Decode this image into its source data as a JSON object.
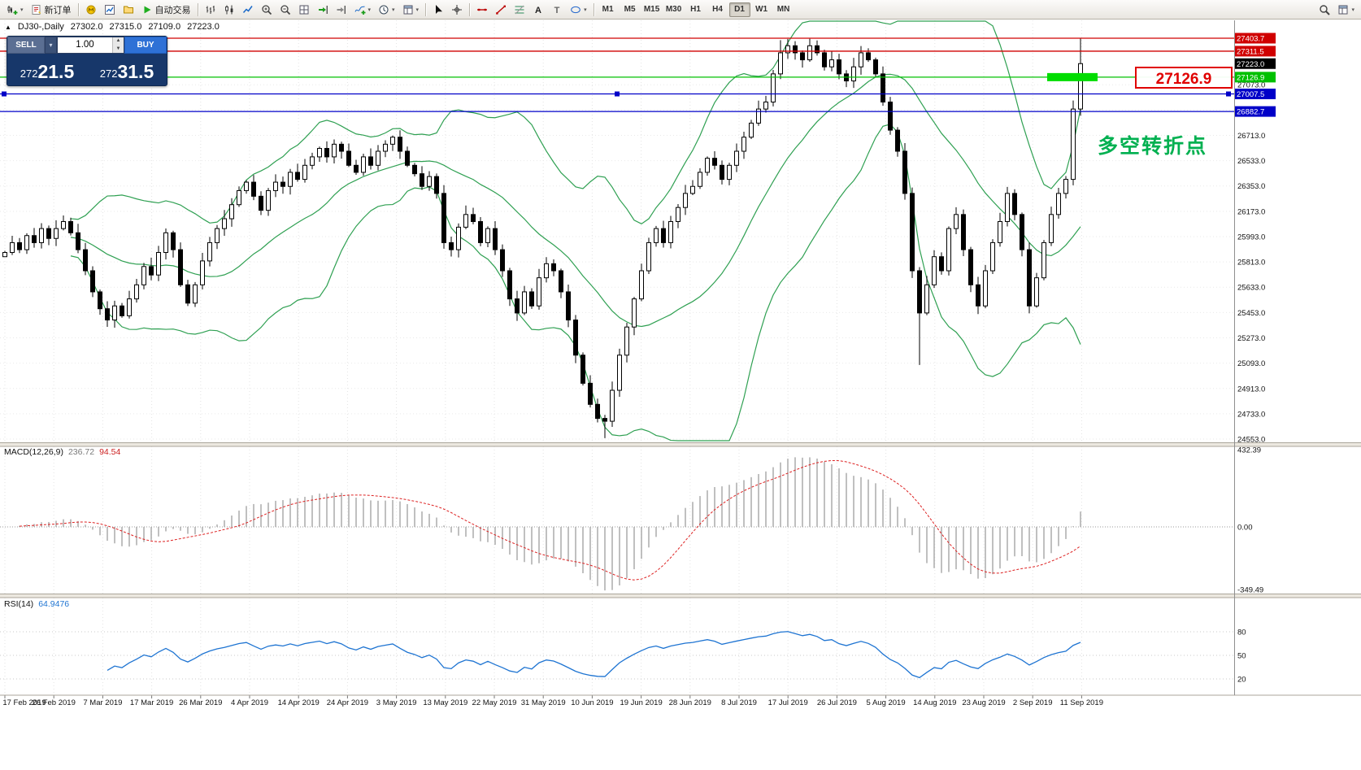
{
  "toolbar": {
    "timeframes": [
      "M1",
      "M5",
      "M15",
      "M30",
      "H1",
      "H4",
      "D1",
      "W1",
      "MN"
    ],
    "active_timeframe": "D1",
    "items": [
      {
        "type": "btn",
        "name": "new-chart-button",
        "icon": "chart-new",
        "caret": true
      },
      {
        "type": "btn",
        "name": "new-order-button",
        "icon": "order",
        "label": "新订单"
      },
      {
        "type": "sep"
      },
      {
        "type": "btn",
        "name": "metaeditor-button",
        "icon": "metaeditor"
      },
      {
        "type": "btn",
        "name": "market-watch-button",
        "icon": "market-watch"
      },
      {
        "type": "btn",
        "name": "navigator-button",
        "icon": "navigator"
      },
      {
        "type": "btn",
        "name": "autotrading-button",
        "icon": "autotrade",
        "label": "自动交易"
      },
      {
        "type": "sep"
      },
      {
        "type": "btn",
        "name": "bar-chart-button",
        "icon": "bars"
      },
      {
        "type": "btn",
        "name": "candlestick-chart-button",
        "icon": "candles"
      },
      {
        "type": "btn",
        "name": "line-chart-button",
        "icon": "line"
      },
      {
        "type": "btn",
        "name": "zoom-in-button",
        "icon": "zoom-in"
      },
      {
        "type": "btn",
        "name": "zoom-out-button",
        "icon": "zoom-out"
      },
      {
        "type": "btn",
        "name": "tile-windows-button",
        "icon": "grid"
      },
      {
        "type": "btn",
        "name": "auto-scroll-button",
        "icon": "autoscroll"
      },
      {
        "type": "btn",
        "name": "chart-shift-button",
        "icon": "shift"
      },
      {
        "type": "btn",
        "name": "indicators-button",
        "icon": "indicators",
        "caret": true
      },
      {
        "type": "btn",
        "name": "periods-button",
        "icon": "periods",
        "caret": true
      },
      {
        "type": "btn",
        "name": "templates-button",
        "icon": "templates",
        "caret": true
      },
      {
        "type": "sep"
      },
      {
        "type": "btn",
        "name": "cursor-button",
        "icon": "cursor"
      },
      {
        "type": "btn",
        "name": "crosshair-button",
        "icon": "crosshair"
      },
      {
        "type": "sep"
      },
      {
        "type": "btn",
        "name": "horizontal-line-button",
        "icon": "hline"
      },
      {
        "type": "btn",
        "name": "trendline-button",
        "icon": "trendline"
      },
      {
        "type": "btn",
        "name": "fibonacci-button",
        "icon": "fibo"
      },
      {
        "type": "btn",
        "name": "text-button",
        "icon": "text"
      },
      {
        "type": "btn",
        "name": "text-label-button",
        "icon": "label"
      },
      {
        "type": "btn",
        "name": "arrows-button",
        "icon": "shapes",
        "caret": true
      },
      {
        "type": "sep"
      },
      {
        "type": "tf-group"
      },
      {
        "type": "spacer"
      },
      {
        "type": "btn",
        "name": "search-button",
        "icon": "search"
      },
      {
        "type": "btn",
        "name": "toolbar-options-button",
        "icon": "templates",
        "caret": true
      }
    ]
  },
  "chart_header": {
    "collapse_marker": "▲",
    "symbol": "DJ30-,Daily",
    "open": "27302.0",
    "high": "27315.0",
    "low": "27109.0",
    "close": "27223.0"
  },
  "one_click": {
    "sell_label": "SELL",
    "buy_label": "BUY",
    "volume": "1.00",
    "sell_price": "27221.5",
    "buy_price": "27231.5"
  },
  "annotations": {
    "price_callout": "27126.9",
    "note": "多空转折点"
  },
  "macd_header": {
    "label": "MACD(12,26,9)",
    "main_value": "236.72",
    "signal_value": "94.54"
  },
  "rsi_header": {
    "label": "RSI(14)",
    "value": "64.9476"
  },
  "chart_data": {
    "type": "candlestick",
    "symbol": "DJ30-",
    "timeframe": "Daily",
    "ohlc_header": {
      "open": 27302.0,
      "high": 27315.0,
      "low": 27109.0,
      "close": 27223.0
    },
    "current_price": 27223.0,
    "closes": [
      25880,
      25950,
      25900,
      26000,
      25950,
      26050,
      25980,
      26050,
      26100,
      26020,
      25900,
      25750,
      25600,
      25480,
      25400,
      25500,
      25430,
      25550,
      25650,
      25780,
      25720,
      25880,
      26020,
      25900,
      25650,
      25520,
      25650,
      25820,
      25950,
      26050,
      26120,
      26220,
      26320,
      26380,
      26280,
      26180,
      26320,
      26380,
      26350,
      26450,
      26400,
      26500,
      26560,
      26620,
      26560,
      26650,
      26600,
      26500,
      26450,
      26560,
      26500,
      26600,
      26650,
      26700,
      26600,
      26500,
      26440,
      26350,
      26420,
      26300,
      25950,
      25900,
      26060,
      26150,
      26100,
      25950,
      26050,
      25900,
      25750,
      25550,
      25450,
      25600,
      25500,
      25700,
      25800,
      25750,
      25600,
      25400,
      25150,
      24950,
      24800,
      24700,
      24680,
      24900,
      25150,
      25350,
      25550,
      25750,
      25950,
      26050,
      25950,
      26100,
      26200,
      26300,
      26350,
      26450,
      26550,
      26500,
      26400,
      26500,
      26600,
      26700,
      26800,
      26900,
      26950,
      27150,
      27300,
      27350,
      27300,
      27250,
      27350,
      27300,
      27200,
      27250,
      27150,
      27100,
      27200,
      27300,
      27250,
      27150,
      26950,
      26750,
      26600,
      26300,
      25750,
      25450,
      25650,
      25850,
      25750,
      26050,
      26150,
      25900,
      25650,
      25500,
      25750,
      25950,
      26100,
      26300,
      26150,
      25900,
      25500,
      25700,
      25950,
      26150,
      26300,
      26400,
      26900,
      27223
    ],
    "special": {
      "0": {
        "open": 25850
      },
      "82": {
        "low": 24560
      },
      "106": {
        "high": 27390
      },
      "110": {
        "high": 27400
      },
      "125": {
        "low": 25080
      },
      "147": {
        "high": 27403.7
      }
    },
    "indicators": [
      "Bollinger Bands (20,2)",
      "MACD(12,26,9)",
      "RSI(14)"
    ],
    "hlines": [
      {
        "price": 27403.7,
        "color": "#d00000"
      },
      {
        "price": 27311.5,
        "color": "#d00000"
      },
      {
        "price": 27126.9,
        "color": "#00c000",
        "highlight_segment": true
      },
      {
        "price": 27007.5,
        "color": "#0000c8",
        "selected": true
      },
      {
        "price": 26882.7,
        "color": "#0000c8"
      }
    ],
    "price_axis_ticks": [
      27073.0,
      26893.0,
      26713.0,
      26533.0,
      26353.0,
      26173.0,
      25993.0,
      25813.0,
      25633.0,
      25453.0,
      25273.0,
      25093.0,
      24913.0,
      24733.0,
      24553.0
    ],
    "macd_axis": [
      "432.39",
      "0.00",
      "-349.49"
    ],
    "rsi_levels": [
      80,
      50,
      20
    ],
    "dates": [
      "17 Feb 2019",
      "26 Feb 2019",
      "7 Mar 2019",
      "17 Mar 2019",
      "26 Mar 2019",
      "4 Apr 2019",
      "14 Apr 2019",
      "24 Apr 2019",
      "3 May 2019",
      "13 May 2019",
      "22 May 2019",
      "31 May 2019",
      "10 Jun 2019",
      "19 Jun 2019",
      "28 Jun 2019",
      "8 Jul 2019",
      "17 Jul 2019",
      "26 Jul 2019",
      "5 Aug 2019",
      "14 Aug 2019",
      "23 Aug 2019",
      "2 Sep 2019",
      "11 Sep 2019"
    ]
  }
}
